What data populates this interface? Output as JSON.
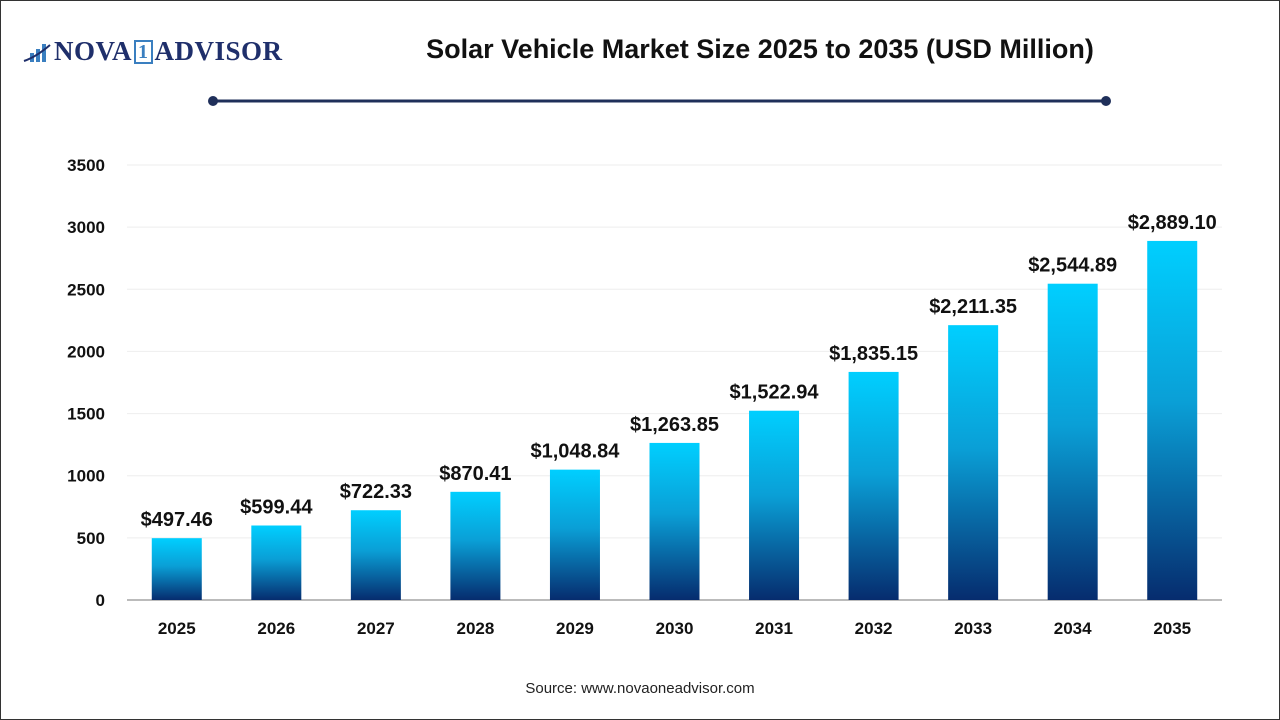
{
  "logo": {
    "text_left": "NOVA",
    "text_mid": "1",
    "text_right": "ADVISOR"
  },
  "header": {
    "title": "Solar Vehicle Market Size 2025 to 2035 (USD Million)"
  },
  "footer": {
    "source": "Source: www.novaoneadvisor.com"
  },
  "colors": {
    "bar_top": "#00CFFF",
    "bar_bottom": "#062C6E",
    "divider": "#1F2F5A"
  },
  "chart_data": {
    "type": "bar",
    "title": "Solar Vehicle Market Size 2025 to 2035 (USD Million)",
    "categories": [
      "2025",
      "2026",
      "2027",
      "2028",
      "2029",
      "2030",
      "2031",
      "2032",
      "2033",
      "2034",
      "2035"
    ],
    "values": [
      497.46,
      599.44,
      722.33,
      870.41,
      1048.84,
      1263.85,
      1522.94,
      1835.15,
      2211.35,
      2544.89,
      2889.1
    ],
    "data_labels": [
      "$497.46",
      "$599.44",
      "$722.33",
      "$870.41",
      "$1,048.84",
      "$1,263.85",
      "$1,522.94",
      "$1,835.15",
      "$2,211.35",
      "$2,544.89",
      "$2,889.10"
    ],
    "yticks": [
      0,
      500,
      1000,
      1500,
      2000,
      2500,
      3000,
      3500
    ],
    "ylim": [
      0,
      3500
    ],
    "xlabel": "",
    "ylabel": "",
    "grid": true,
    "legend": "none"
  }
}
